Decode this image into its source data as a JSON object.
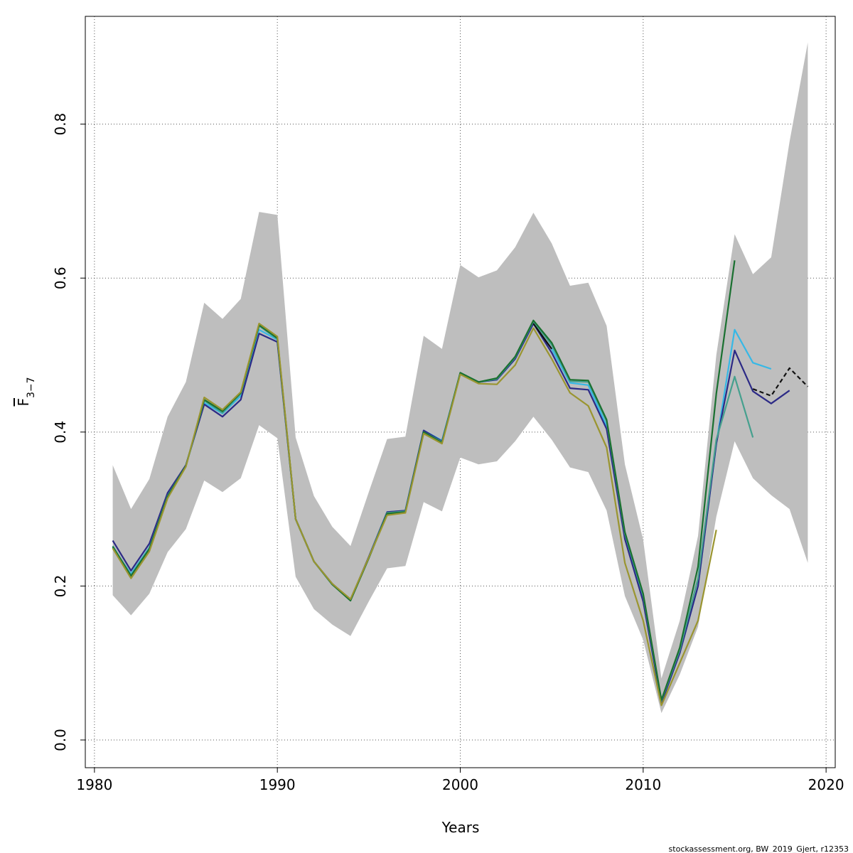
{
  "chart_data": {
    "type": "line",
    "xlabel": "Years",
    "ylabel": "F",
    "ylabel_sub": "3−7",
    "credit": "stockassessment.org, BW_2019_Gjert, r12353",
    "xlim": [
      1979.5,
      2020.5
    ],
    "ylim": [
      -0.036,
      0.94
    ],
    "x_ticks": [
      "1980",
      "1990",
      "2000",
      "2010",
      "2020"
    ],
    "y_ticks": [
      "0.0",
      "0.2",
      "0.4",
      "0.6",
      "0.8"
    ],
    "grid": true,
    "band": {
      "color": "#bebebe",
      "x": [
        1981,
        1982,
        1983,
        1984,
        1985,
        1986,
        1987,
        1988,
        1989,
        1990,
        1991,
        1992,
        1993,
        1994,
        1995,
        1996,
        1997,
        1998,
        1999,
        2000,
        2001,
        2002,
        2003,
        2004,
        2005,
        2006,
        2007,
        2008,
        2009,
        2010,
        2011,
        2012,
        2013,
        2014,
        2015,
        2016,
        2017,
        2018,
        2019
      ],
      "upper": [
        0.357,
        0.3,
        0.339,
        0.42,
        0.465,
        0.568,
        0.547,
        0.573,
        0.686,
        0.682,
        0.393,
        0.317,
        0.277,
        0.252,
        0.322,
        0.391,
        0.394,
        0.525,
        0.508,
        0.617,
        0.601,
        0.61,
        0.64,
        0.685,
        0.645,
        0.59,
        0.594,
        0.538,
        0.358,
        0.26,
        0.08,
        0.155,
        0.265,
        0.5,
        0.657,
        0.605,
        0.627,
        0.777,
        0.906
      ],
      "lower": [
        0.188,
        0.162,
        0.19,
        0.244,
        0.274,
        0.337,
        0.322,
        0.34,
        0.409,
        0.392,
        0.212,
        0.17,
        0.15,
        0.135,
        0.18,
        0.223,
        0.226,
        0.309,
        0.297,
        0.367,
        0.358,
        0.362,
        0.388,
        0.42,
        0.39,
        0.354,
        0.348,
        0.298,
        0.187,
        0.13,
        0.035,
        0.085,
        0.147,
        0.29,
        0.388,
        0.34,
        0.318,
        0.3,
        0.23
      ]
    },
    "series": [
      {
        "color": "#36b8e6",
        "dashed": false,
        "x": [
          1981,
          1982,
          1983,
          1984,
          1985,
          1986,
          1987,
          1988,
          1989,
          1990,
          1991,
          1992,
          1993,
          1994,
          1995,
          1996,
          1997,
          1998,
          1999,
          2000,
          2001,
          2002,
          2003,
          2004,
          2005,
          2006,
          2007,
          2008,
          2009,
          2010,
          2011,
          2012,
          2013,
          2014,
          2015,
          2016,
          2017
        ],
        "values": [
          0.25,
          0.216,
          0.25,
          0.318,
          0.356,
          0.438,
          0.424,
          0.447,
          0.533,
          0.52,
          0.287,
          0.232,
          0.202,
          0.182,
          0.237,
          0.296,
          0.298,
          0.402,
          0.389,
          0.476,
          0.465,
          0.468,
          0.495,
          0.541,
          0.508,
          0.464,
          0.461,
          0.408,
          0.264,
          0.183,
          0.048,
          0.113,
          0.2,
          0.385,
          0.533,
          0.49,
          0.482
        ]
      },
      {
        "color": "#2c2a86",
        "dashed": false,
        "x": [
          1981,
          1982,
          1983,
          1984,
          1985,
          1986,
          1987,
          1988,
          1989,
          1990,
          1991,
          1992,
          1993,
          1994,
          1995,
          1996,
          1997,
          1998,
          1999,
          2000,
          2001,
          2002,
          2003,
          2004,
          2005,
          2006,
          2007,
          2008,
          2009,
          2010,
          2011,
          2012,
          2013,
          2014,
          2015,
          2016,
          2017,
          2018
        ],
        "values": [
          0.259,
          0.22,
          0.255,
          0.321,
          0.357,
          0.436,
          0.42,
          0.442,
          0.528,
          0.517,
          0.287,
          0.232,
          0.203,
          0.182,
          0.238,
          0.296,
          0.298,
          0.402,
          0.388,
          0.476,
          0.465,
          0.468,
          0.495,
          0.541,
          0.503,
          0.457,
          0.455,
          0.404,
          0.261,
          0.18,
          0.048,
          0.113,
          0.2,
          0.385,
          0.506,
          0.453,
          0.437,
          0.454
        ]
      },
      {
        "color": "#111111",
        "dashed": true,
        "x": [
          2016,
          2017,
          2018,
          2019
        ],
        "values": [
          0.456,
          0.447,
          0.483,
          0.459
        ]
      },
      {
        "color": "#111111",
        "dashed": false,
        "x": [
          2004,
          2005
        ],
        "values": [
          0.541,
          0.508
        ]
      },
      {
        "color": "#45a08e",
        "dashed": false,
        "x": [
          1981,
          1982,
          1983,
          1984,
          1985,
          1986,
          1987,
          1988,
          1989,
          1990,
          1991,
          1992,
          1993,
          1994,
          1995,
          1996,
          1997,
          1998,
          1999,
          2000,
          2001,
          2002,
          2003,
          2004,
          2005,
          2006,
          2007,
          2008,
          2009,
          2010,
          2011,
          2012,
          2013,
          2014,
          2015,
          2016
        ],
        "values": [
          0.252,
          0.214,
          0.249,
          0.317,
          0.356,
          0.441,
          0.425,
          0.45,
          0.538,
          0.521,
          0.287,
          0.232,
          0.202,
          0.182,
          0.237,
          0.295,
          0.297,
          0.4,
          0.387,
          0.477,
          0.465,
          0.469,
          0.497,
          0.544,
          0.513,
          0.466,
          0.465,
          0.414,
          0.268,
          0.188,
          0.051,
          0.117,
          0.21,
          0.39,
          0.472,
          0.393
        ]
      },
      {
        "color": "#1a7030",
        "dashed": false,
        "x": [
          1981,
          1982,
          1983,
          1984,
          1985,
          1986,
          1987,
          1988,
          1989,
          1990,
          1991,
          1992,
          1993,
          1994,
          1995,
          1996,
          1997,
          1998,
          1999,
          2000,
          2001,
          2002,
          2003,
          2004,
          2005,
          2006,
          2007,
          2008,
          2009,
          2010,
          2011,
          2012,
          2013,
          2014,
          2015
        ],
        "values": [
          0.251,
          0.213,
          0.248,
          0.316,
          0.356,
          0.442,
          0.427,
          0.451,
          0.539,
          0.522,
          0.287,
          0.232,
          0.202,
          0.181,
          0.236,
          0.294,
          0.296,
          0.4,
          0.386,
          0.477,
          0.465,
          0.47,
          0.498,
          0.545,
          0.516,
          0.468,
          0.467,
          0.416,
          0.27,
          0.19,
          0.052,
          0.12,
          0.225,
          0.45,
          0.623
        ]
      },
      {
        "color": "#9a9530",
        "dashed": false,
        "x": [
          1981,
          1982,
          1983,
          1984,
          1985,
          1986,
          1987,
          1988,
          1989,
          1990,
          1991,
          1992,
          1993,
          1994,
          1995,
          1996,
          1997,
          1998,
          1999,
          2000,
          2001,
          2002,
          2003,
          2004,
          2005,
          2006,
          2007,
          2008,
          2009,
          2010,
          2011,
          2012,
          2013,
          2014
        ],
        "values": [
          0.249,
          0.21,
          0.245,
          0.314,
          0.355,
          0.445,
          0.429,
          0.452,
          0.541,
          0.524,
          0.287,
          0.232,
          0.203,
          0.183,
          0.237,
          0.292,
          0.295,
          0.398,
          0.385,
          0.475,
          0.463,
          0.462,
          0.487,
          0.535,
          0.495,
          0.451,
          0.434,
          0.38,
          0.23,
          0.155,
          0.045,
          0.1,
          0.155,
          0.273
        ]
      }
    ]
  }
}
